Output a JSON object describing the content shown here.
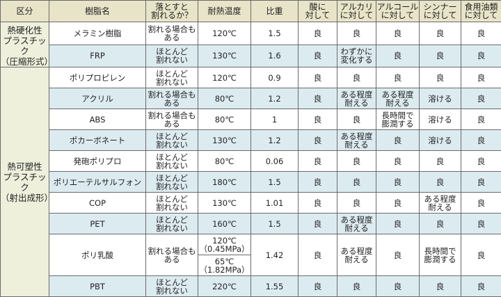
{
  "headers": [
    "区分",
    "樹脂名",
    "落とすと\n割れるか？",
    "耐熱温度",
    "比重",
    "酸に\n対して",
    "アルカリ\nに対して",
    "アルコール\nに対して",
    "シンナー\nに対して",
    "食用油類\nに対して"
  ],
  "groups": [
    {
      "category": "熱硬化性\nプラスチック\n（圧縮形式）",
      "rows": [
        {
          "resin": "メラミン樹脂",
          "drop": "割れる場合も\nある",
          "heat": [
            "120℃"
          ],
          "gravity": "1.5",
          "acid": "良",
          "alkali": "良",
          "alcohol": "良",
          "thinner": "良",
          "oil": "良"
        },
        {
          "resin": "FRP",
          "drop": "ほとんど\n割れない",
          "heat": [
            "130℃"
          ],
          "gravity": "1.6",
          "acid": "良",
          "alkali": "わずかに\n変化する",
          "alcohol": "良",
          "thinner": "良",
          "oil": "良"
        }
      ]
    },
    {
      "category": "熱可塑性\nプラスチック\n（射出成形）",
      "rows": [
        {
          "resin": "ポリプロピレン",
          "drop": "ほとんど\n割れない",
          "heat": [
            "120℃"
          ],
          "gravity": "0.9",
          "acid": "良",
          "alkali": "良",
          "alcohol": "良",
          "thinner": "良",
          "oil": "良"
        },
        {
          "resin": "アクリル",
          "drop": "割れる場合も\nある",
          "heat": [
            "80℃"
          ],
          "gravity": "1.2",
          "acid": "良",
          "alkali": "ある程度\n耐える",
          "alcohol": "ある程度\n耐える",
          "thinner": "溶ける",
          "oil": "良"
        },
        {
          "resin": "ABS",
          "drop": "割れる場合も\nある",
          "heat": [
            "80℃"
          ],
          "gravity": "1",
          "acid": "良",
          "alkali": "良",
          "alcohol": "長時間で\n膨潤する",
          "thinner": "溶ける",
          "oil": "良"
        },
        {
          "resin": "ポカーボネート",
          "drop": "ほとんど\n割れない",
          "heat": [
            "130℃"
          ],
          "gravity": "1.2",
          "acid": "良",
          "alkali": "ある程度\n耐える",
          "alcohol": "良",
          "thinner": "溶ける",
          "oil": "良"
        },
        {
          "resin": "発砲ポリプロ",
          "drop": "ほとんど\n割れない",
          "heat": [
            "80℃"
          ],
          "gravity": "0.06",
          "acid": "良",
          "alkali": "良",
          "alcohol": "良",
          "thinner": "良",
          "oil": "良"
        },
        {
          "resin": "ポリエーテルサルフォン",
          "drop": "ほとんど\n割れない",
          "heat": [
            "180℃"
          ],
          "gravity": "1.5",
          "acid": "良",
          "alkali": "良",
          "alcohol": "良",
          "thinner": "良",
          "oil": "良"
        },
        {
          "resin": "COP",
          "drop": "ほとんど\n割れない",
          "heat": [
            "130℃"
          ],
          "gravity": "1.01",
          "acid": "良",
          "alkali": "良",
          "alcohol": "良",
          "thinner": "ある程度\n耐える",
          "oil": "良"
        },
        {
          "resin": "PET",
          "drop": "ほとんど\n割れない",
          "heat": [
            "160℃"
          ],
          "gravity": "1.5",
          "acid": "良",
          "alkali": "ある程度\n耐える",
          "alcohol": "良",
          "thinner": "良",
          "oil": "良"
        },
        {
          "resin": "ポリ乳酸",
          "drop": "割れる場合も\nある",
          "heat": [
            "120℃\n（0.45MPa）",
            "65℃\n（1.82MPa）"
          ],
          "gravity": "1.42",
          "acid": "良",
          "alkali": "ある程度\n耐える",
          "alcohol": "良",
          "thinner": "長時間で\n膨潤する",
          "oil": "良"
        },
        {
          "resin": "PBT",
          "drop": "ほとんど\n割れない",
          "heat": [
            "220℃"
          ],
          "gravity": "1.55",
          "acid": "良",
          "alkali": "良",
          "alcohol": "良",
          "thinner": "良",
          "oil": "良"
        }
      ]
    }
  ]
}
